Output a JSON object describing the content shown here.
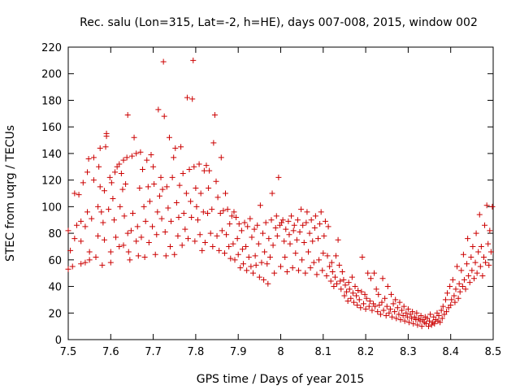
{
  "chart_data": {
    "type": "scatter",
    "title": "Rec. salu (Lon=315, Lat=-2, h=HE), days 007-008, 2015, window 002",
    "xlabel": "GPS time / Days of year 2015",
    "ylabel": "STEC from uqrg / TECUs",
    "xlim": [
      7.5,
      8.5
    ],
    "ylim": [
      0,
      220
    ],
    "xticks": [
      7.5,
      7.6,
      7.7,
      7.8,
      7.9,
      8.0,
      8.1,
      8.2,
      8.3,
      8.4,
      8.5
    ],
    "xtick_labels": [
      "7.5",
      "7.6",
      "7.7",
      "7.8",
      "7.9",
      "8",
      "8.1",
      "8.2",
      "8.3",
      "8.4",
      "8.5"
    ],
    "yticks": [
      0,
      20,
      40,
      60,
      80,
      100,
      120,
      140,
      160,
      180,
      200,
      220
    ],
    "ytick_labels": [
      "0",
      "20",
      "40",
      "60",
      "80",
      "100",
      "120",
      "140",
      "160",
      "180",
      "200",
      "220"
    ],
    "grid": false,
    "marker": "+",
    "color": "#cc0000",
    "points": [
      [
        7.5,
        53
      ],
      [
        7.5,
        82
      ],
      [
        7.505,
        67
      ],
      [
        7.51,
        55
      ],
      [
        7.515,
        76
      ],
      [
        7.515,
        110
      ],
      [
        7.52,
        86
      ],
      [
        7.525,
        109
      ],
      [
        7.53,
        57
      ],
      [
        7.53,
        74
      ],
      [
        7.53,
        89
      ],
      [
        7.535,
        118
      ],
      [
        7.54,
        58
      ],
      [
        7.54,
        85
      ],
      [
        7.545,
        96
      ],
      [
        7.545,
        126
      ],
      [
        7.548,
        136
      ],
      [
        7.55,
        60
      ],
      [
        7.55,
        66
      ],
      [
        7.555,
        91
      ],
      [
        7.56,
        137
      ],
      [
        7.56,
        120
      ],
      [
        7.565,
        62
      ],
      [
        7.57,
        78
      ],
      [
        7.57,
        100
      ],
      [
        7.572,
        130
      ],
      [
        7.575,
        144
      ],
      [
        7.575,
        115
      ],
      [
        7.578,
        96
      ],
      [
        7.58,
        56
      ],
      [
        7.582,
        88
      ],
      [
        7.585,
        75
      ],
      [
        7.585,
        112
      ],
      [
        7.588,
        145
      ],
      [
        7.59,
        155
      ],
      [
        7.59,
        153
      ],
      [
        7.595,
        98
      ],
      [
        7.598,
        122
      ],
      [
        7.6,
        58
      ],
      [
        7.6,
        66
      ],
      [
        7.602,
        118
      ],
      [
        7.605,
        106
      ],
      [
        7.608,
        90
      ],
      [
        7.61,
        126
      ],
      [
        7.612,
        77
      ],
      [
        7.615,
        130
      ],
      [
        7.62,
        70
      ],
      [
        7.62,
        132
      ],
      [
        7.622,
        100
      ],
      [
        7.625,
        125
      ],
      [
        7.628,
        113
      ],
      [
        7.63,
        71
      ],
      [
        7.63,
        135
      ],
      [
        7.632,
        93
      ],
      [
        7.635,
        117
      ],
      [
        7.638,
        137
      ],
      [
        7.64,
        169
      ],
      [
        7.64,
        80
      ],
      [
        7.642,
        66
      ],
      [
        7.645,
        60
      ],
      [
        7.648,
        82
      ],
      [
        7.65,
        138
      ],
      [
        7.652,
        95
      ],
      [
        7.655,
        152
      ],
      [
        7.66,
        74
      ],
      [
        7.66,
        140
      ],
      [
        7.663,
        85
      ],
      [
        7.665,
        63
      ],
      [
        7.668,
        114
      ],
      [
        7.67,
        141
      ],
      [
        7.672,
        77
      ],
      [
        7.675,
        128
      ],
      [
        7.678,
        100
      ],
      [
        7.68,
        62
      ],
      [
        7.682,
        89
      ],
      [
        7.685,
        135
      ],
      [
        7.688,
        115
      ],
      [
        7.69,
        73
      ],
      [
        7.692,
        104
      ],
      [
        7.695,
        139
      ],
      [
        7.698,
        85
      ],
      [
        7.7,
        130
      ],
      [
        7.702,
        117
      ],
      [
        7.705,
        64
      ],
      [
        7.708,
        79
      ],
      [
        7.71,
        96
      ],
      [
        7.712,
        173
      ],
      [
        7.715,
        108
      ],
      [
        7.718,
        122
      ],
      [
        7.72,
        91
      ],
      [
        7.722,
        113
      ],
      [
        7.724,
        209
      ],
      [
        7.726,
        168
      ],
      [
        7.728,
        81
      ],
      [
        7.73,
        63
      ],
      [
        7.732,
        115
      ],
      [
        7.735,
        99
      ],
      [
        7.738,
        152
      ],
      [
        7.74,
        70
      ],
      [
        7.742,
        89
      ],
      [
        7.745,
        122
      ],
      [
        7.748,
        137
      ],
      [
        7.75,
        64
      ],
      [
        7.752,
        144
      ],
      [
        7.755,
        103
      ],
      [
        7.758,
        78
      ],
      [
        7.76,
        92
      ],
      [
        7.762,
        116
      ],
      [
        7.765,
        145
      ],
      [
        7.768,
        71
      ],
      [
        7.77,
        125
      ],
      [
        7.772,
        95
      ],
      [
        7.775,
        83
      ],
      [
        7.778,
        110
      ],
      [
        7.78,
        182
      ],
      [
        7.782,
        76
      ],
      [
        7.785,
        128
      ],
      [
        7.788,
        104
      ],
      [
        7.79,
        92
      ],
      [
        7.792,
        181
      ],
      [
        7.794,
        210
      ],
      [
        7.796,
        130
      ],
      [
        7.798,
        74
      ],
      [
        7.8,
        114
      ],
      [
        7.802,
        100
      ],
      [
        7.805,
        90
      ],
      [
        7.808,
        132
      ],
      [
        7.81,
        79
      ],
      [
        7.812,
        110
      ],
      [
        7.815,
        67
      ],
      [
        7.818,
        96
      ],
      [
        7.82,
        127
      ],
      [
        7.822,
        73
      ],
      [
        7.825,
        131
      ],
      [
        7.828,
        95
      ],
      [
        7.83,
        114
      ],
      [
        7.832,
        127
      ],
      [
        7.835,
        80
      ],
      [
        7.838,
        98
      ],
      [
        7.84,
        70
      ],
      [
        7.842,
        148
      ],
      [
        7.845,
        169
      ],
      [
        7.848,
        119
      ],
      [
        7.85,
        78
      ],
      [
        7.852,
        107
      ],
      [
        7.855,
        67
      ],
      [
        7.858,
        95
      ],
      [
        7.86,
        137
      ],
      [
        7.862,
        82
      ],
      [
        7.865,
        97
      ],
      [
        7.868,
        65
      ],
      [
        7.87,
        110
      ],
      [
        7.872,
        79
      ],
      [
        7.875,
        98
      ],
      [
        7.878,
        70
      ],
      [
        7.88,
        87
      ],
      [
        7.882,
        61
      ],
      [
        7.885,
        93
      ],
      [
        7.888,
        72
      ],
      [
        7.89,
        96
      ],
      [
        7.892,
        60
      ],
      [
        7.895,
        92
      ],
      [
        7.898,
        76
      ],
      [
        7.9,
        64
      ],
      [
        7.902,
        87
      ],
      [
        7.905,
        54
      ],
      [
        7.908,
        82
      ],
      [
        7.91,
        68
      ],
      [
        7.912,
        57
      ],
      [
        7.915,
        88
      ],
      [
        7.918,
        70
      ],
      [
        7.92,
        52
      ],
      [
        7.922,
        85
      ],
      [
        7.925,
        62
      ],
      [
        7.928,
        91
      ],
      [
        7.93,
        55
      ],
      [
        7.932,
        77
      ],
      [
        7.935,
        50
      ],
      [
        7.938,
        83
      ],
      [
        7.94,
        63
      ],
      [
        7.942,
        56
      ],
      [
        7.945,
        86
      ],
      [
        7.948,
        72
      ],
      [
        7.95,
        47
      ],
      [
        7.952,
        101
      ],
      [
        7.955,
        58
      ],
      [
        7.958,
        80
      ],
      [
        7.96,
        45
      ],
      [
        7.962,
        66
      ],
      [
        7.965,
        88
      ],
      [
        7.968,
        57
      ],
      [
        7.97,
        42
      ],
      [
        7.972,
        76
      ],
      [
        7.975,
        62
      ],
      [
        7.978,
        90
      ],
      [
        7.98,
        110
      ],
      [
        7.982,
        71
      ],
      [
        7.985,
        50
      ],
      [
        7.988,
        84
      ],
      [
        7.99,
        93
      ],
      [
        7.992,
        78
      ],
      [
        7.995,
        122
      ],
      [
        7.998,
        86
      ],
      [
        8.0,
        55
      ],
      [
        8.002,
        88
      ],
      [
        8.005,
        90
      ],
      [
        8.008,
        74
      ],
      [
        8.01,
        62
      ],
      [
        8.012,
        83
      ],
      [
        8.015,
        51
      ],
      [
        8.018,
        89
      ],
      [
        8.02,
        79
      ],
      [
        8.022,
        72
      ],
      [
        8.025,
        93
      ],
      [
        8.028,
        54
      ],
      [
        8.03,
        82
      ],
      [
        8.032,
        86
      ],
      [
        8.035,
        65
      ],
      [
        8.038,
        75
      ],
      [
        8.04,
        90
      ],
      [
        8.042,
        52
      ],
      [
        8.045,
        81
      ],
      [
        8.048,
        98
      ],
      [
        8.05,
        60
      ],
      [
        8.052,
        86
      ],
      [
        8.055,
        73
      ],
      [
        8.058,
        50
      ],
      [
        8.06,
        88
      ],
      [
        8.062,
        96
      ],
      [
        8.065,
        66
      ],
      [
        8.068,
        80
      ],
      [
        8.07,
        54
      ],
      [
        8.072,
        90
      ],
      [
        8.075,
        74
      ],
      [
        8.078,
        58
      ],
      [
        8.08,
        84
      ],
      [
        8.082,
        93
      ],
      [
        8.085,
        49
      ],
      [
        8.088,
        76
      ],
      [
        8.09,
        60
      ],
      [
        8.092,
        87
      ],
      [
        8.095,
        96
      ],
      [
        8.098,
        52
      ],
      [
        8.1,
        65
      ],
      [
        8.102,
        78
      ],
      [
        8.105,
        89
      ],
      [
        8.108,
        48
      ],
      [
        8.11,
        63
      ],
      [
        8.112,
        85
      ],
      [
        8.115,
        55
      ],
      [
        8.118,
        44
      ],
      [
        8.12,
        58
      ],
      [
        8.122,
        51
      ],
      [
        8.125,
        40
      ],
      [
        8.128,
        47
      ],
      [
        8.13,
        63
      ],
      [
        8.132,
        42
      ],
      [
        8.135,
        75
      ],
      [
        8.138,
        56
      ],
      [
        8.14,
        44
      ],
      [
        8.142,
        38
      ],
      [
        8.145,
        51
      ],
      [
        8.148,
        45
      ],
      [
        8.15,
        33
      ],
      [
        8.152,
        41
      ],
      [
        8.155,
        36
      ],
      [
        8.158,
        29
      ],
      [
        8.16,
        43
      ],
      [
        8.162,
        38
      ],
      [
        8.165,
        31
      ],
      [
        8.168,
        47
      ],
      [
        8.17,
        35
      ],
      [
        8.172,
        28
      ],
      [
        8.175,
        40
      ],
      [
        8.178,
        33
      ],
      [
        8.18,
        26
      ],
      [
        8.182,
        37
      ],
      [
        8.185,
        30
      ],
      [
        8.188,
        24
      ],
      [
        8.19,
        36
      ],
      [
        8.192,
        62
      ],
      [
        8.195,
        27
      ],
      [
        8.198,
        34
      ],
      [
        8.2,
        23
      ],
      [
        8.202,
        31
      ],
      [
        8.205,
        50
      ],
      [
        8.208,
        25
      ],
      [
        8.21,
        29
      ],
      [
        8.212,
        46
      ],
      [
        8.215,
        22
      ],
      [
        8.218,
        27
      ],
      [
        8.22,
        50
      ],
      [
        8.222,
        25
      ],
      [
        8.225,
        38
      ],
      [
        8.228,
        21
      ],
      [
        8.23,
        34
      ],
      [
        8.232,
        26
      ],
      [
        8.235,
        19
      ],
      [
        8.238,
        28
      ],
      [
        8.24,
        46
      ],
      [
        8.242,
        22
      ],
      [
        8.245,
        31
      ],
      [
        8.248,
        18
      ],
      [
        8.25,
        25
      ],
      [
        8.252,
        40
      ],
      [
        8.255,
        20
      ],
      [
        8.258,
        23
      ],
      [
        8.26,
        34
      ],
      [
        8.262,
        17
      ],
      [
        8.265,
        27
      ],
      [
        8.268,
        21
      ],
      [
        8.27,
        30
      ],
      [
        8.272,
        16
      ],
      [
        8.275,
        24
      ],
      [
        8.278,
        19
      ],
      [
        8.28,
        28
      ],
      [
        8.282,
        15
      ],
      [
        8.285,
        22
      ],
      [
        8.288,
        18
      ],
      [
        8.29,
        25
      ],
      [
        8.292,
        14
      ],
      [
        8.295,
        20
      ],
      [
        8.298,
        17
      ],
      [
        8.3,
        23
      ],
      [
        8.302,
        13
      ],
      [
        8.305,
        19
      ],
      [
        8.308,
        16
      ],
      [
        8.31,
        21
      ],
      [
        8.312,
        12
      ],
      [
        8.315,
        17
      ],
      [
        8.318,
        15
      ],
      [
        8.32,
        20
      ],
      [
        8.322,
        11
      ],
      [
        8.325,
        16
      ],
      [
        8.328,
        14
      ],
      [
        8.33,
        18
      ],
      [
        8.332,
        10
      ],
      [
        8.335,
        15
      ],
      [
        8.338,
        13
      ],
      [
        8.34,
        17
      ],
      [
        8.342,
        12
      ],
      [
        8.345,
        16
      ],
      [
        8.348,
        10
      ],
      [
        8.35,
        14
      ],
      [
        8.352,
        19
      ],
      [
        8.355,
        11
      ],
      [
        8.358,
        13
      ],
      [
        8.36,
        17
      ],
      [
        8.362,
        12
      ],
      [
        8.365,
        15
      ],
      [
        8.368,
        20
      ],
      [
        8.37,
        14
      ],
      [
        8.372,
        18
      ],
      [
        8.375,
        13
      ],
      [
        8.378,
        22
      ],
      [
        8.38,
        16
      ],
      [
        8.382,
        25
      ],
      [
        8.385,
        19
      ],
      [
        8.388,
        30
      ],
      [
        8.39,
        21
      ],
      [
        8.392,
        35
      ],
      [
        8.395,
        24
      ],
      [
        8.398,
        40
      ],
      [
        8.4,
        26
      ],
      [
        8.402,
        30
      ],
      [
        8.405,
        45
      ],
      [
        8.408,
        33
      ],
      [
        8.41,
        28
      ],
      [
        8.412,
        38
      ],
      [
        8.415,
        55
      ],
      [
        8.418,
        31
      ],
      [
        8.42,
        42
      ],
      [
        8.422,
        36
      ],
      [
        8.425,
        52
      ],
      [
        8.428,
        40
      ],
      [
        8.43,
        64
      ],
      [
        8.432,
        45
      ],
      [
        8.435,
        38
      ],
      [
        8.438,
        57
      ],
      [
        8.44,
        76
      ],
      [
        8.442,
        48
      ],
      [
        8.445,
        43
      ],
      [
        8.448,
        62
      ],
      [
        8.45,
        52
      ],
      [
        8.452,
        70
      ],
      [
        8.455,
        46
      ],
      [
        8.458,
        58
      ],
      [
        8.46,
        80
      ],
      [
        8.462,
        50
      ],
      [
        8.465,
        66
      ],
      [
        8.468,
        94
      ],
      [
        8.47,
        55
      ],
      [
        8.472,
        70
      ],
      [
        8.475,
        48
      ],
      [
        8.478,
        62
      ],
      [
        8.48,
        86
      ],
      [
        8.482,
        58
      ],
      [
        8.485,
        101
      ],
      [
        8.488,
        72
      ],
      [
        8.49,
        56
      ],
      [
        8.492,
        82
      ],
      [
        8.495,
        66
      ],
      [
        8.498,
        100
      ]
    ]
  }
}
